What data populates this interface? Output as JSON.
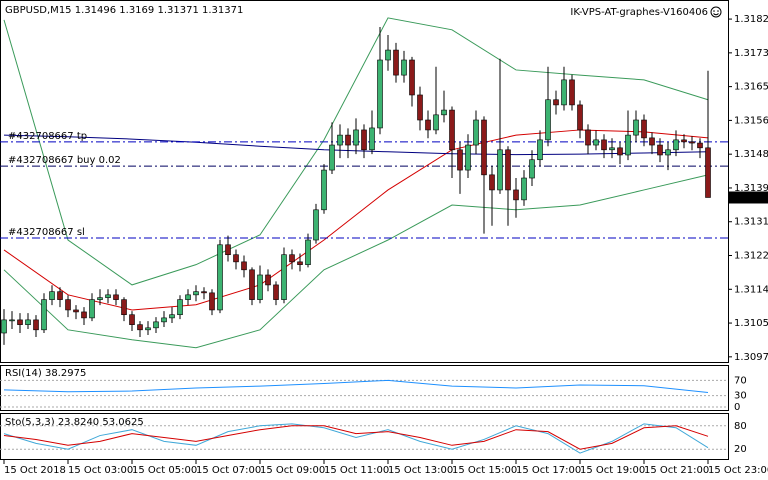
{
  "chart_data": [
    {
      "type": "candlestick",
      "title": "GBPUSD,M15",
      "annotation": "IK-VPS-AT-graphes-V160406",
      "up_color": "#3cb371",
      "down_color": "#8b1a1a",
      "open": [
        1.3103,
        1.31063,
        1.31063,
        1.31051,
        1.31063,
        1.31038,
        1.31114,
        1.31134,
        1.31114,
        1.31088,
        1.31083,
        1.31068,
        1.31114,
        1.31119,
        1.31126,
        1.31114,
        1.31076,
        1.31051,
        1.31038,
        1.31043,
        1.31058,
        1.31068,
        1.31076,
        1.31114,
        1.31126,
        1.31134,
        1.31131,
        1.31088,
        1.31252,
        1.31227,
        1.31209,
        1.31189,
        1.31114,
        1.31176,
        1.31151,
        1.31114,
        1.31227,
        1.31209,
        1.31202,
        1.31264,
        1.3134,
        1.3144,
        1.31503,
        1.31528,
        1.31503,
        1.31541,
        1.31491,
        1.31546,
        1.31717,
        1.31742,
        1.31679,
        1.31717,
        1.31629,
        1.31566,
        1.31541,
        1.31579,
        1.31591,
        1.31491,
        1.3144,
        1.31503,
        1.31566,
        1.31428,
        1.3139,
        1.31491,
        1.3139,
        1.31365,
        1.3142,
        1.31466,
        1.31516,
        1.31617,
        1.31604,
        1.31667,
        1.31604,
        1.31541,
        1.31503,
        1.31516,
        1.31491,
        1.31496,
        1.31478,
        1.31528,
        1.31566,
        1.31521,
        1.31503,
        1.31478,
        1.31491,
        1.31516,
        1.31511,
        1.31508,
        1.31496
      ],
      "high": [
        1.3109,
        1.31085,
        1.3108,
        1.3108,
        1.31075,
        1.3113,
        1.3115,
        1.31145,
        1.31125,
        1.311,
        1.31095,
        1.3113,
        1.3114,
        1.3114,
        1.3114,
        1.3112,
        1.31085,
        1.3106,
        1.3106,
        1.3107,
        1.31085,
        1.31095,
        1.31125,
        1.3114,
        1.3115,
        1.31145,
        1.3114,
        1.31265,
        1.31275,
        1.3124,
        1.31225,
        1.31195,
        1.312,
        1.3119,
        1.3116,
        1.31245,
        1.3124,
        1.3123,
        1.3128,
        1.31355,
        1.31455,
        1.3156,
        1.31555,
        1.31545,
        1.3157,
        1.31555,
        1.3159,
        1.318,
        1.3178,
        1.3176,
        1.3174,
        1.31725,
        1.3165,
        1.3159,
        1.317,
        1.3164,
        1.316,
        1.3151,
        1.3153,
        1.3159,
        1.31575,
        1.3145,
        1.3172,
        1.315,
        1.3142,
        1.3144,
        1.3149,
        1.3154,
        1.317,
        1.3164,
        1.317,
        1.3168,
        1.31615,
        1.31555,
        1.3154,
        1.3153,
        1.3152,
        1.3151,
        1.3159,
        1.3159,
        1.3158,
        1.31535,
        1.3152,
        1.3151,
        1.3154,
        1.3153,
        1.31525,
        1.3152,
        1.3169
      ],
      "low": [
        1.31,
        1.3104,
        1.3103,
        1.3104,
        1.3102,
        1.3103,
        1.311,
        1.31095,
        1.3107,
        1.31065,
        1.3105,
        1.3106,
        1.311,
        1.31105,
        1.311,
        1.3106,
        1.31035,
        1.3102,
        1.31025,
        1.3103,
        1.31045,
        1.31055,
        1.31065,
        1.311,
        1.3111,
        1.31115,
        1.31075,
        1.3108,
        1.3121,
        1.3119,
        1.3117,
        1.311,
        1.31105,
        1.31135,
        1.311,
        1.31105,
        1.3119,
        1.31185,
        1.31195,
        1.31255,
        1.3133,
        1.3143,
        1.3147,
        1.3147,
        1.3148,
        1.3147,
        1.3148,
        1.3153,
        1.3169,
        1.3166,
        1.3166,
        1.316,
        1.3154,
        1.3152,
        1.3153,
        1.3156,
        1.3142,
        1.3138,
        1.3142,
        1.3148,
        1.3128,
        1.313,
        1.3138,
        1.313,
        1.3132,
        1.3135,
        1.314,
        1.3145,
        1.315,
        1.3158,
        1.3159,
        1.3159,
        1.3152,
        1.3148,
        1.3149,
        1.3147,
        1.3147,
        1.31455,
        1.31465,
        1.3151,
        1.315,
        1.3148,
        1.3146,
        1.3144,
        1.31475,
        1.31495,
        1.3149,
        1.3147,
        1.31371
      ],
      "close": [
        1.31063,
        1.31063,
        1.31051,
        1.31063,
        1.31038,
        1.31114,
        1.31134,
        1.31114,
        1.31088,
        1.31083,
        1.31068,
        1.31114,
        1.31119,
        1.31126,
        1.31114,
        1.31076,
        1.31051,
        1.31038,
        1.31043,
        1.31058,
        1.31068,
        1.31076,
        1.31114,
        1.31126,
        1.31134,
        1.31131,
        1.31088,
        1.31252,
        1.31227,
        1.31209,
        1.31189,
        1.31114,
        1.31176,
        1.31151,
        1.31114,
        1.31227,
        1.31209,
        1.31202,
        1.31264,
        1.3134,
        1.3144,
        1.31503,
        1.31528,
        1.31503,
        1.31541,
        1.31491,
        1.31546,
        1.31717,
        1.31742,
        1.31679,
        1.31717,
        1.31629,
        1.31566,
        1.31541,
        1.31579,
        1.31591,
        1.31491,
        1.3144,
        1.31503,
        1.31566,
        1.31428,
        1.3139,
        1.31491,
        1.3139,
        1.31365,
        1.3142,
        1.31466,
        1.31516,
        1.31617,
        1.31604,
        1.31667,
        1.31604,
        1.31541,
        1.31503,
        1.31516,
        1.31491,
        1.31496,
        1.31478,
        1.31528,
        1.31566,
        1.31521,
        1.31503,
        1.31478,
        1.31491,
        1.31516,
        1.31511,
        1.31508,
        1.31496,
        1.31371
      ],
      "overlays": [
        {
          "color": "#3a9a5a",
          "x": [
            0,
            8,
            16,
            24,
            32,
            40,
            48,
            56,
            64,
            72,
            80,
            88
          ],
          "values": [
            1.31818,
            1.31264,
            1.31151,
            1.31202,
            1.31277,
            1.31516,
            1.31823,
            1.31793,
            1.31692,
            1.31679,
            1.31667,
            1.31617
          ]
        },
        {
          "color": "#3a9a5a",
          "x": [
            0,
            8,
            16,
            24,
            32,
            40,
            48,
            56,
            64,
            72,
            80,
            88
          ],
          "values": [
            1.31189,
            1.31038,
            1.31013,
            1.30993,
            1.31038,
            1.31189,
            1.31264,
            1.31352,
            1.3134,
            1.31352,
            1.3139,
            1.31428
          ]
        },
        {
          "color": "#d40000",
          "x": [
            0,
            8,
            16,
            24,
            32,
            40,
            48,
            56,
            64,
            72,
            80,
            88
          ],
          "values": [
            1.31239,
            1.31126,
            1.31088,
            1.31101,
            1.31151,
            1.31264,
            1.3139,
            1.31491,
            1.31528,
            1.31541,
            1.31536,
            1.31521
          ]
        },
        {
          "color": "#000080",
          "x": [
            0,
            8,
            16,
            24,
            32,
            40,
            48,
            56,
            64,
            72,
            80,
            88
          ],
          "values": [
            1.31528,
            1.31524,
            1.31518,
            1.3151,
            1.315,
            1.31491,
            1.31486,
            1.31481,
            1.31479,
            1.3148,
            1.31483,
            1.31486
          ]
        }
      ],
      "orders": [
        {
          "label": "#432708667 tp",
          "value": 1.31511,
          "color": "#0000c0"
        },
        {
          "label": "#432708667 buy 0.02",
          "value": 1.3145,
          "color": "#000060"
        },
        {
          "label": "#432708667 sl",
          "value": 1.31269,
          "color": "#0000c0"
        }
      ],
      "xlim": [
        -0.5,
        90.5
      ],
      "ylim": [
        1.30957,
        1.31868
      ],
      "yticks": [
        {
          "value": 1.3182,
          "label": "1.31820"
        },
        1.31735,
        {
          "value": 1.3165,
          "label": "1.31650"
        },
        1.31565,
        {
          "value": 1.3148,
          "label": "1.31480"
        },
        1.31395,
        {
          "value": 1.3131,
          "label": "1.31310"
        },
        1.31225,
        {
          "value": 1.3114,
          "label": "1.31140"
        },
        1.31055,
        {
          "value": 1.3097,
          "label": "1.30970"
        }
      ],
      "xticks": [
        {
          "value": 0,
          "label": "15 Oct 2018"
        },
        {
          "value": 8,
          "label": "15 Oct 03:00"
        },
        {
          "value": 16,
          "label": "15 Oct 05:00"
        },
        {
          "value": 24,
          "label": "15 Oct 07:00"
        },
        {
          "value": 32,
          "label": "15 Oct 09:00"
        },
        {
          "value": 40,
          "label": "15 Oct 11:00"
        },
        {
          "value": 48,
          "label": "15 Oct 13:00"
        },
        {
          "value": 56,
          "label": "15 Oct 15:00"
        },
        {
          "value": 64,
          "label": "15 Oct 17:00"
        },
        {
          "value": 72,
          "label": "15 Oct 19:00"
        },
        {
          "value": 80,
          "label": "15 Oct 21:00"
        },
        {
          "value": 88,
          "label": "15 Oct 23:00"
        }
      ]
    },
    {
      "type": "line",
      "title": "RSI(14) 38.2975",
      "x": [
        0,
        8,
        16,
        24,
        32,
        40,
        48,
        56,
        64,
        72,
        80,
        88
      ],
      "series": [
        {
          "color": "#1e90ff",
          "values": [
            45,
            40,
            42,
            50,
            55,
            62,
            70,
            55,
            50,
            58,
            56,
            38.2975
          ]
        }
      ],
      "xlim": [
        -0.5,
        90.5
      ],
      "ylim": [
        0,
        100
      ],
      "yticks": [
        70,
        30,
        0
      ]
    },
    {
      "type": "line",
      "title": "Sto(5,3,3) 23.8240 53.0625",
      "x": [
        0,
        4,
        8,
        12,
        16,
        20,
        24,
        28,
        32,
        36,
        40,
        44,
        48,
        52,
        56,
        60,
        64,
        68,
        72,
        76,
        80,
        84,
        88
      ],
      "series": [
        {
          "color": "#40a8d8",
          "values": [
            60,
            35,
            20,
            55,
            70,
            40,
            30,
            65,
            80,
            85,
            75,
            50,
            70,
            40,
            20,
            45,
            80,
            60,
            10,
            40,
            85,
            75,
            23.824
          ]
        },
        {
          "color": "#d40000",
          "values": [
            55,
            45,
            30,
            40,
            60,
            50,
            40,
            55,
            70,
            80,
            80,
            60,
            65,
            50,
            30,
            40,
            70,
            65,
            20,
            35,
            75,
            80,
            53.0625
          ]
        }
      ],
      "xlim": [
        -0.5,
        90.5
      ],
      "ylim": [
        0,
        100
      ],
      "yticks": [
        80,
        20
      ]
    }
  ]
}
